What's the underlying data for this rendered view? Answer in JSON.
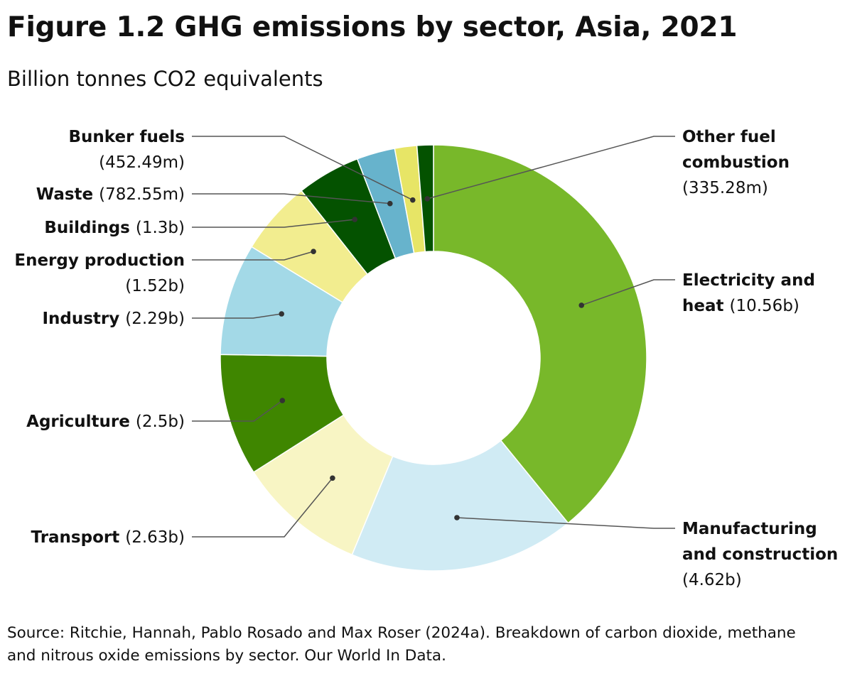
{
  "title": "Figure 1.2 GHG emissions by sector, Asia, 2021",
  "subtitle": "Billion tonnes CO2 equivalents",
  "source_lines": [
    "Source: Ritchie, Hannah, Pablo Rosado and Max Roser (2024a). Breakdown of carbon dioxide, methane",
    "and nitrous oxide emissions by sector. Our World In Data."
  ],
  "chart_data": {
    "type": "pie",
    "donut": true,
    "title": "Figure 1.2 GHG emissions by sector, Asia, 2021",
    "subtitle": "Billion tonnes CO2 equivalents",
    "unit": "billion tonnes CO2e",
    "slices": [
      {
        "name": "Electricity and heat",
        "value": 10.56,
        "label": "(10.56b)",
        "color": "#78b82a"
      },
      {
        "name": "Manufacturing and construction",
        "value": 4.62,
        "label": "(4.62b)",
        "color": "#d0ebf4"
      },
      {
        "name": "Transport",
        "value": 2.63,
        "label": "(2.63b)",
        "color": "#f8f5c4"
      },
      {
        "name": "Agriculture",
        "value": 2.5,
        "label": "(2.5b)",
        "color": "#3f8600"
      },
      {
        "name": "Industry",
        "value": 2.29,
        "label": "(2.29b)",
        "color": "#a3d9e7"
      },
      {
        "name": "Energy production",
        "value": 1.52,
        "label": "(1.52b)",
        "color": "#f2ed8f"
      },
      {
        "name": "Buildings",
        "value": 1.3,
        "label": "(1.3b)",
        "color": "#045200"
      },
      {
        "name": "Waste",
        "value": 0.78255,
        "label": "(782.55m)",
        "color": "#67b3cc"
      },
      {
        "name": "Bunker fuels",
        "value": 0.45249,
        "label": "(452.49m)",
        "color": "#e7e566"
      },
      {
        "name": "Other fuel combustion",
        "value": 0.33528,
        "label": "(335.28m)",
        "color": "#045200"
      }
    ]
  }
}
